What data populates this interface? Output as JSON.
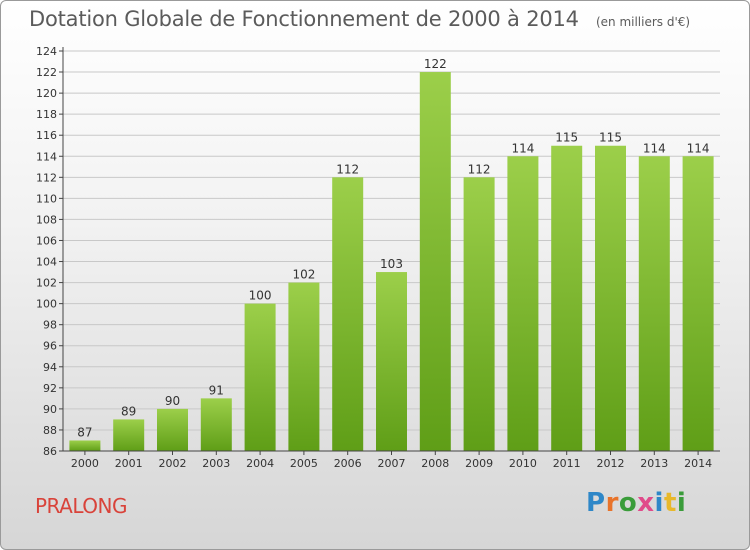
{
  "header": {
    "title": "Dotation Globale de Fonctionnement de 2000 à 2014",
    "unit": "(en milliers d'€)"
  },
  "footer": {
    "place": "PRALONG",
    "logo_text": "Proxiti",
    "logo_colors": [
      "#2e87c8",
      "#e8732a",
      "#3a9c3a",
      "#e04a8a",
      "#2e87c8",
      "#e8b82a",
      "#3a9c3a"
    ]
  },
  "colors": {
    "bar_top": "#9ccf4a",
    "bar_bottom": "#5f9e17",
    "axis": "#444444",
    "grid": "#c8c8c8",
    "title": "#5b5b5b",
    "place": "#d9433a"
  },
  "chart_data": {
    "type": "bar",
    "title": "Dotation Globale de Fonctionnement de 2000 à 2014",
    "subtitle": "(en milliers d'€)",
    "xlabel": "",
    "ylabel": "",
    "categories": [
      "2000",
      "2001",
      "2002",
      "2003",
      "2004",
      "2005",
      "2006",
      "2007",
      "2008",
      "2009",
      "2010",
      "2011",
      "2012",
      "2013",
      "2014"
    ],
    "values": [
      87,
      89,
      90,
      91,
      100,
      102,
      112,
      103,
      122,
      112,
      114,
      115,
      115,
      114,
      114
    ],
    "ylim": [
      86,
      124
    ],
    "yticks": [
      86,
      88,
      90,
      92,
      94,
      96,
      98,
      100,
      102,
      104,
      106,
      108,
      110,
      112,
      114,
      116,
      118,
      120,
      122,
      124
    ],
    "grid": true,
    "legend": "none"
  }
}
